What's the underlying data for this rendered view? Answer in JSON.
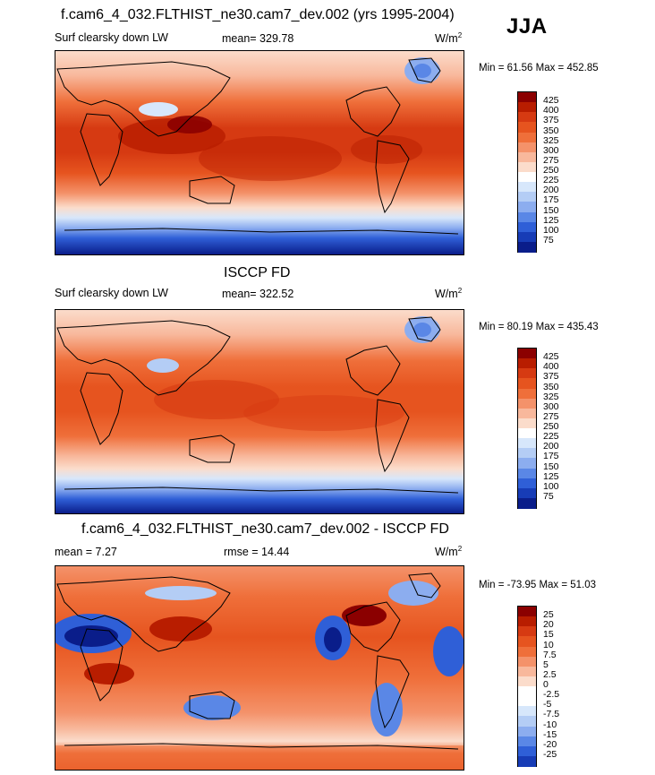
{
  "season": "JJA",
  "panels": [
    {
      "title": "f.cam6_4_032.FLTHIST_ne30.cam7_dev.002 (yrs 1995-2004)",
      "variable": "Surf clearsky down LW",
      "stat": "mean= 329.78",
      "units": "W/m",
      "units_sup": "2",
      "minmax": "Min =  61.56 Max = 452.85",
      "levels": [
        "425",
        "400",
        "375",
        "350",
        "325",
        "300",
        "275",
        "250",
        "225",
        "200",
        "175",
        "150",
        "125",
        "100",
        "75"
      ]
    },
    {
      "title": "ISCCP FD",
      "variable": "Surf clearsky down LW",
      "stat": "mean= 322.52",
      "units": "W/m",
      "units_sup": "2",
      "minmax": "Min =  80.19 Max = 435.43",
      "levels": [
        "425",
        "400",
        "375",
        "350",
        "325",
        "300",
        "275",
        "250",
        "225",
        "200",
        "175",
        "150",
        "125",
        "100",
        "75"
      ]
    },
    {
      "title": "f.cam6_4_032.FLTHIST_ne30.cam7_dev.002 - ISCCP FD",
      "variable": "mean =   7.27",
      "stat": "rmse =  14.44",
      "units": "W/m",
      "units_sup": "2",
      "minmax": "Min = -73.95 Max =  51.03",
      "levels": [
        "25",
        "20",
        "15",
        "10",
        "7.5",
        "5",
        "2.5",
        "0",
        "-2.5",
        "-5",
        "-7.5",
        "-10",
        "-15",
        "-20",
        "-25"
      ]
    }
  ],
  "colors": {
    "abs_scale": [
      "#8b0000",
      "#b81d00",
      "#d63a12",
      "#e6541f",
      "#ef6f3a",
      "#f4926a",
      "#f8b89c",
      "#fbdccb",
      "#ffffff",
      "#d7e7fb",
      "#b4cdf5",
      "#8cadef",
      "#5a87e6",
      "#2f5fd7",
      "#173cb6",
      "#0a1d8a"
    ],
    "diff_scale": [
      "#8b0000",
      "#b81d00",
      "#d63a12",
      "#e6541f",
      "#ef6f3a",
      "#f4926a",
      "#f8b89c",
      "#fbdccb",
      "#ffffff",
      "#ffffff",
      "#d7e7fb",
      "#b4cdf5",
      "#8cadef",
      "#5a87e6",
      "#2f5fd7",
      "#173cb6",
      "#0a1d8a"
    ]
  }
}
